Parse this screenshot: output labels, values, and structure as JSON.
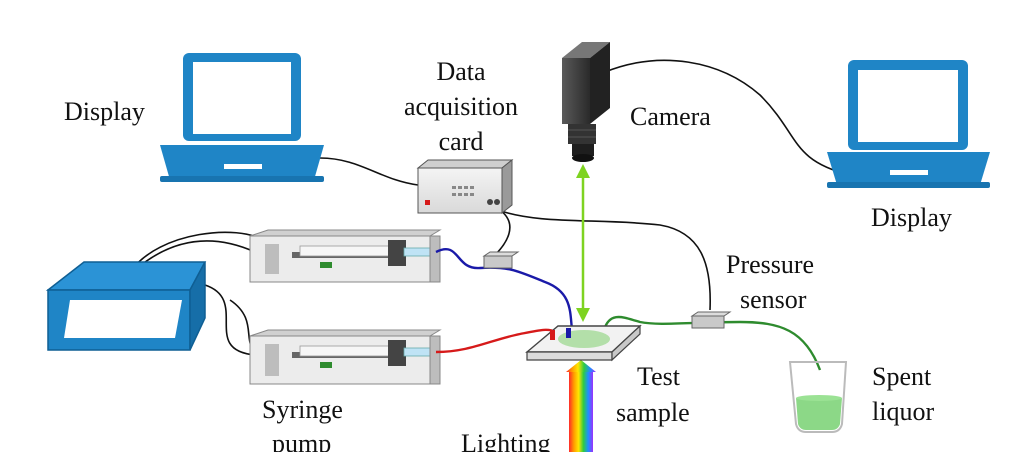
{
  "labels": {
    "display_left": "Display",
    "daq_line1": "Data",
    "daq_line2": "acquisition",
    "daq_line3": "card",
    "camera": "Camera",
    "display_right": "Display",
    "pressure_line1": "Pressure",
    "pressure_line2": "sensor",
    "test_line1": "Test",
    "test_line2": "sample",
    "spent_line1": "Spent",
    "spent_line2": "liquor",
    "syringe_line1": "Syringe",
    "syringe_line2": "pump",
    "lighting": "Lighting"
  },
  "colors": {
    "laptop_blue": "#1f85c6",
    "laptop_screen": "#ffffff",
    "camera_body": "#3a3a3a",
    "light_beam": "#7ed321",
    "tube_blue": "#1a1aa8",
    "tube_red": "#d61a1a",
    "tube_green": "#2e8b2e",
    "liquor_green": "#7fd47a",
    "cable": "#111111",
    "pump_body": "#e8e8e8"
  }
}
